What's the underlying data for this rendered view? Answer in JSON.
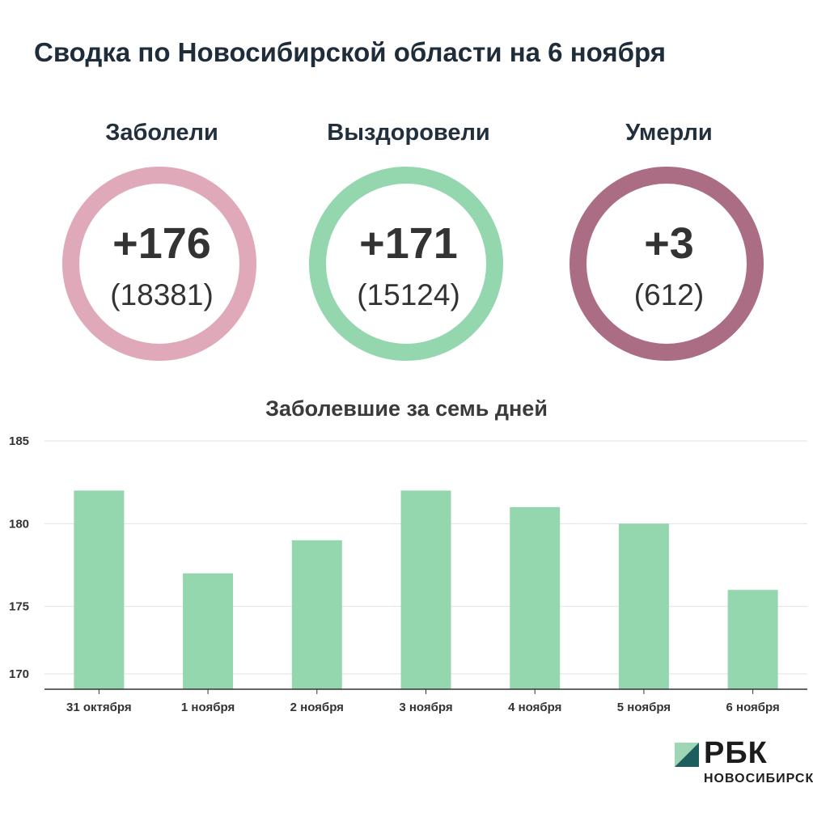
{
  "title": "Сводка по Новосибирской области на 6 ноября",
  "stats": {
    "infected": {
      "label": "Заболели",
      "value": "+176",
      "total": "(18381)",
      "color": "#dfa9b9"
    },
    "recovered": {
      "label": "Выздоровели",
      "value": "+171",
      "total": "(15124)",
      "color": "#94d7ae"
    },
    "died": {
      "label": "Умерли",
      "value": "+3",
      "total": "(612)",
      "color": "#ab6d83"
    }
  },
  "chart_data": {
    "type": "bar",
    "title": "Заболевшие за семь дней",
    "categories": [
      "31 октября",
      "1 ноября",
      "2 ноября",
      "3 ноября",
      "4 ноября",
      "5 ноября",
      "6 ноября"
    ],
    "values": [
      182,
      177,
      179,
      182,
      181,
      180,
      176
    ],
    "ylim": [
      170,
      185
    ],
    "yticks": [
      170,
      175,
      180,
      185
    ],
    "grid": true,
    "bar_color": "#94d7ae"
  },
  "logo": {
    "text": "РБК",
    "subtitle": "НОВОСИБИРСК",
    "mark_color": "#1e5c5e"
  }
}
